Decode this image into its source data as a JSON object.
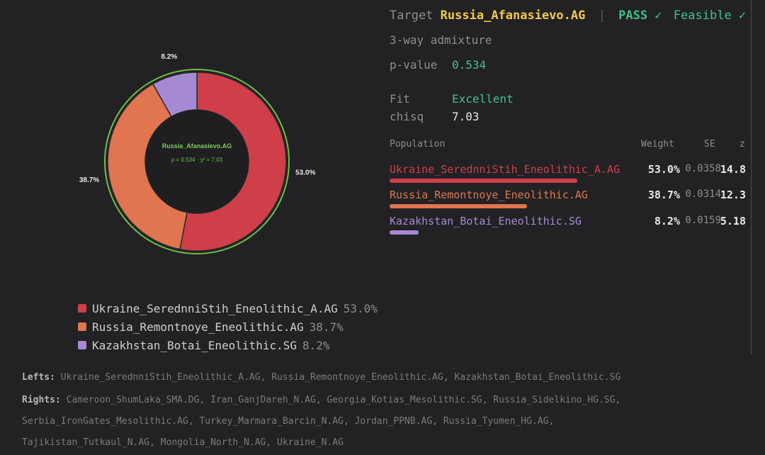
{
  "target": {
    "label": "Target",
    "name": "Russia_Afanasievo.AG",
    "separator": "|",
    "pass": "PASS ✓",
    "feasible": "Feasible ✓"
  },
  "subtitle": "3-way admixture",
  "stats": [
    {
      "key": "p-value",
      "value": "0.534",
      "color": "#43c08a"
    },
    {
      "key": "Fit",
      "value": "Excellent",
      "color": "#43c08a"
    },
    {
      "key": "chisq",
      "value": "7.03",
      "color": "#e8e8ea"
    }
  ],
  "table": {
    "headers": {
      "population": "Population",
      "weight": "Weight",
      "se": "SE",
      "z": "z"
    },
    "rows": [
      {
        "population": "Ukraine_SerednniStih_Eneolithic_A.AG",
        "weight": "53.0%",
        "weight_value": 53.0,
        "se": "0.0358",
        "z": "14.8",
        "color": "#cf3f49"
      },
      {
        "population": "Russia_Remontnoye_Eneolithic.AG",
        "weight": "38.7%",
        "weight_value": 38.7,
        "se": "0.0314",
        "z": "12.3",
        "color": "#e0754f"
      },
      {
        "population": "Kazakhstan_Botai_Eneolithic.SG",
        "weight": "8.2%",
        "weight_value": 8.2,
        "se": "0.0159",
        "z": "5.18",
        "color": "#a58ad3"
      }
    ]
  },
  "donut": {
    "center_title": "Russia_Afanasievo.AG",
    "center_sub": "p = 0.534 · χ² = 7.03",
    "ring_color": "#6fbf4a",
    "labels": [
      "53.0%",
      "38.7%",
      "8.2%"
    ]
  },
  "legend": [
    {
      "name": "Ukraine_SerednniStih_Eneolithic_A.AG",
      "pct": "53.0%",
      "color": "#cf3f49"
    },
    {
      "name": "Russia_Remontnoye_Eneolithic.AG",
      "pct": "38.7%",
      "color": "#e0754f"
    },
    {
      "name": "Kazakhstan_Botai_Eneolithic.SG",
      "pct": "8.2%",
      "color": "#a58ad3"
    }
  ],
  "lefts": {
    "label": "Lefts:",
    "value": "Ukraine_SerednniStih_Eneolithic_A.AG, Russia_Remontnoye_Eneolithic.AG, Kazakhstan_Botai_Eneolithic.SG"
  },
  "rights": {
    "label": "Rights:",
    "lines": [
      "Cameroon_ShumLaka_SMA.DG, Iran_GanjDareh_N.AG, Georgia_Kotias_Mesolithic.SG, Russia_Sidelkino_HG.SG,",
      "Serbia_IronGates_Mesolithic.AG, Turkey_Marmara_Barcin_N.AG, Jordan_PPNB.AG, Russia_Tyumen_HG.AG,",
      "Tajikistan_Tutkaul_N.AG, Mongolia_North_N.AG, Ukraine_N.AG"
    ]
  }
}
